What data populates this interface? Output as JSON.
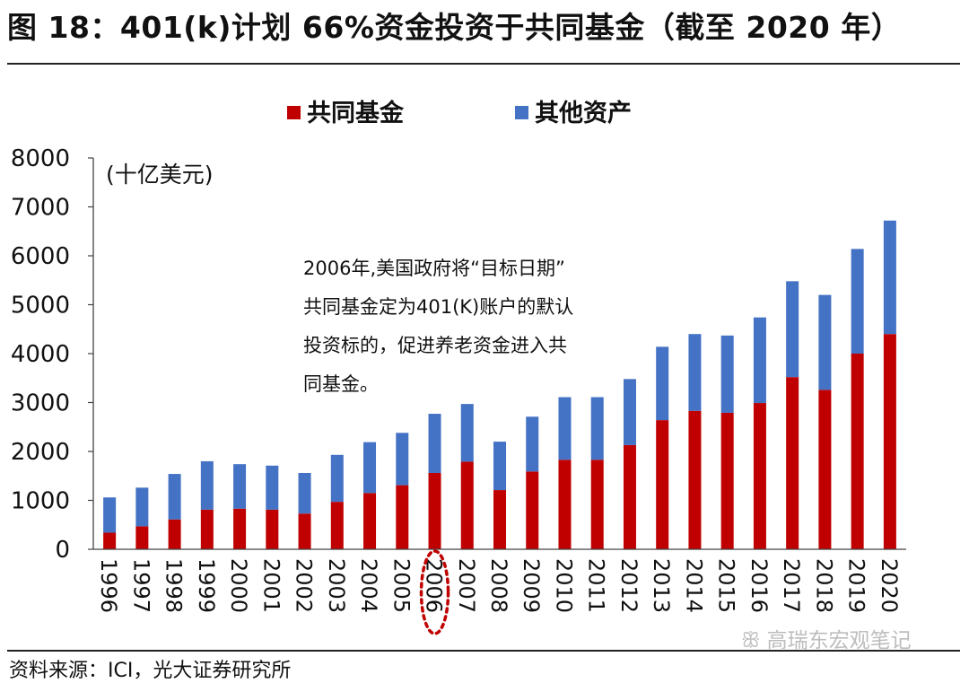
{
  "header": {
    "title": "图 18：401(k)计划 66%资金投资于共同基金（截至 2020 年）"
  },
  "footer": {
    "source": "资料来源：ICI，光大证券研究所",
    "watermark": "高瑞东宏观笔记"
  },
  "chart_data": {
    "type": "bar",
    "stacked": true,
    "ylabel": "(十亿美元)",
    "ylim": [
      0,
      8000
    ],
    "yticks": [
      0,
      1000,
      2000,
      3000,
      4000,
      5000,
      6000,
      7000,
      8000
    ],
    "legend_position": "top-center",
    "categories": [
      "1996",
      "1997",
      "1998",
      "1999",
      "2000",
      "2001",
      "2002",
      "2003",
      "2004",
      "2005",
      "2006",
      "2007",
      "2008",
      "2009",
      "2010",
      "2011",
      "2012",
      "2013",
      "2014",
      "2015",
      "2016",
      "2017",
      "2018",
      "2019",
      "2020"
    ],
    "series": [
      {
        "name": "共同基金",
        "color": "#c00000",
        "values": [
          340,
          470,
          610,
          810,
          830,
          810,
          730,
          970,
          1150,
          1310,
          1560,
          1790,
          1210,
          1590,
          1830,
          1830,
          2130,
          2640,
          2830,
          2790,
          2990,
          3520,
          3260,
          4000,
          4400
        ]
      },
      {
        "name": "其他资产",
        "color": "#4472c4",
        "values": [
          720,
          790,
          930,
          990,
          910,
          900,
          830,
          960,
          1040,
          1070,
          1210,
          1180,
          990,
          1120,
          1280,
          1280,
          1350,
          1500,
          1570,
          1580,
          1750,
          1960,
          1940,
          2140,
          2320
        ]
      }
    ],
    "annotation": {
      "lines": [
        "2006年,美国政府将“目标日期”",
        "共同基金定为401(K)账户的默认",
        "投资标的，促进养老资金进入共",
        "同基金。"
      ],
      "highlight_category": "2006",
      "highlight_style": "dotted-ellipse",
      "highlight_color": "#c00000"
    }
  }
}
